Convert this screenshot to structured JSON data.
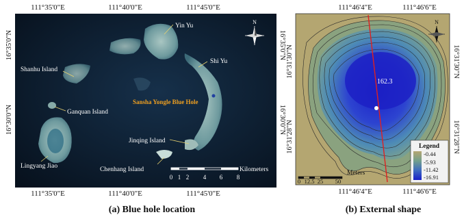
{
  "left_panel": {
    "caption": "(a) Blue hole location",
    "top_ticks": [
      "111°35'0\"E",
      "111°40'0\"E",
      "111°45'0\"E"
    ],
    "bottom_ticks": [
      "111°35'0\"E",
      "111°40'0\"E",
      "111°45'0\"E"
    ],
    "left_ticks": [
      "16°35'0\"N",
      "16°30'0\"N"
    ],
    "right_ticks": [
      "16°35'0\"N",
      "16°30'0\"N"
    ],
    "north_label": "N",
    "labels": {
      "yin_yu": "Yin Yu",
      "shi_yu": "Shi Yu",
      "shanhu": "Shanhu Island",
      "ganquan": "Ganquan Island",
      "blue_hole": "Sansha Yongle Blue Hole",
      "jinqing": "Jinqing Island",
      "lingyang": "Lingyang Jiao",
      "chenhang": "Chenhang Island"
    },
    "scale_bar": {
      "unit": "Kilometers",
      "ticks": [
        "0",
        "1",
        "2",
        "4",
        "6",
        "8"
      ]
    },
    "colors": {
      "sea": "#0b1a2c",
      "reef": "#7fa6a8",
      "blue_hole_label": "#f0a020"
    }
  },
  "right_panel": {
    "caption": "(b) External shape",
    "top_ticks": [
      "111°46'4\"E",
      "111°46'6\"E"
    ],
    "bottom_ticks": [
      "111°46'4\"E",
      "111°46'6\"E"
    ],
    "left_ticks": [
      "16°31'30\"N",
      "16°31'28\"N"
    ],
    "right_ticks": [
      "16°31'30\"N",
      "16°31'28\"N"
    ],
    "north_label": "N",
    "depth_label": "162.3",
    "scale_bar": {
      "unit": "Meters",
      "ticks": [
        "0",
        "12.5",
        "25",
        "50"
      ]
    },
    "legend": {
      "title": "Legend",
      "entries": [
        "-0.44",
        "-5.93",
        "-11.42",
        "-16.91"
      ]
    },
    "colors": {
      "shallow": "#b5a672",
      "mid": "#5e9a9a",
      "deep": "#2c3fc4",
      "profile_line": "#e02020"
    }
  }
}
